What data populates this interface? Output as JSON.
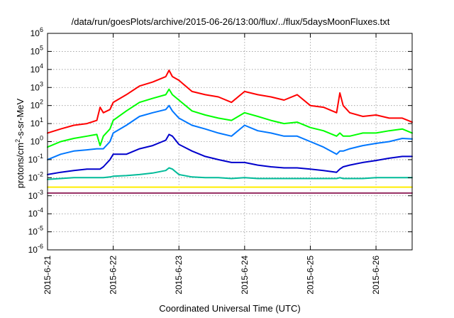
{
  "chart_data": {
    "type": "line",
    "title": "/data/run/goesPlots/archive/2015-06-26/13:00/flux/../flux/5daysMoonFluxes.txt",
    "xlabel": "Coordinated Universal Time (UTC)",
    "ylabel": "protons/cm²-s-sr-MeV",
    "ylabel_parts": {
      "pre": "protons/cm",
      "sup": "2",
      "post": "-s-sr-MeV"
    },
    "y_scale": "log",
    "ylim": [
      1e-06,
      1000000
    ],
    "xlim": [
      0,
      5.55
    ],
    "x_unit": "days since 2015-6-21 00:00 UTC",
    "grid": true,
    "legend": "none",
    "x_ticks": [
      {
        "value": 0,
        "label": "2015-6-21"
      },
      {
        "value": 1,
        "label": "2015-6-22"
      },
      {
        "value": 2,
        "label": "2015-6-23"
      },
      {
        "value": 3,
        "label": "2015-6-24"
      },
      {
        "value": 4,
        "label": "2015-6-25"
      },
      {
        "value": 5,
        "label": "2015-6-26"
      }
    ],
    "y_ticks": [
      {
        "value": 1e-06,
        "base": "10",
        "exp": "-6"
      },
      {
        "value": 1e-05,
        "base": "10",
        "exp": "-5"
      },
      {
        "value": 0.0001,
        "base": "10",
        "exp": "-4"
      },
      {
        "value": 0.001,
        "base": "10",
        "exp": "-3"
      },
      {
        "value": 0.01,
        "base": "10",
        "exp": "-2"
      },
      {
        "value": 0.1,
        "base": "10",
        "exp": "-1"
      },
      {
        "value": 1,
        "base": "10",
        "exp": "0"
      },
      {
        "value": 10,
        "base": "10",
        "exp": "1"
      },
      {
        "value": 100,
        "base": "10",
        "exp": "2"
      },
      {
        "value": 1000,
        "base": "10",
        "exp": "3"
      },
      {
        "value": 10000,
        "base": "10",
        "exp": "4"
      },
      {
        "value": 100000,
        "base": "10",
        "exp": "5"
      },
      {
        "value": 1000000,
        "base": "10",
        "exp": "6"
      }
    ],
    "series": [
      {
        "color": "#ff0000",
        "x": [
          0,
          0.2,
          0.4,
          0.6,
          0.75,
          0.8,
          0.85,
          0.95,
          1.0,
          1.2,
          1.4,
          1.6,
          1.8,
          1.85,
          1.9,
          2.0,
          2.2,
          2.4,
          2.6,
          2.8,
          3.0,
          3.2,
          3.4,
          3.6,
          3.8,
          4.0,
          4.2,
          4.4,
          4.45,
          4.5,
          4.6,
          4.8,
          5.0,
          5.2,
          5.4,
          5.55
        ],
        "y": [
          3,
          5,
          8,
          10,
          15,
          80,
          40,
          60,
          150,
          400,
          1200,
          2000,
          4000,
          9000,
          4000,
          2500,
          600,
          400,
          300,
          150,
          600,
          400,
          300,
          200,
          400,
          100,
          80,
          40,
          500,
          100,
          40,
          25,
          30,
          20,
          20,
          12
        ]
      },
      {
        "color": "#00ff00",
        "x": [
          0,
          0.2,
          0.4,
          0.6,
          0.75,
          0.8,
          0.85,
          0.95,
          1.0,
          1.2,
          1.4,
          1.6,
          1.8,
          1.85,
          1.9,
          2.0,
          2.2,
          2.4,
          2.6,
          2.8,
          3.0,
          3.2,
          3.4,
          3.6,
          3.8,
          4.0,
          4.2,
          4.4,
          4.45,
          4.5,
          4.6,
          4.8,
          5.0,
          5.2,
          5.4,
          5.55
        ],
        "y": [
          0.5,
          1,
          1.5,
          2,
          2.5,
          0.6,
          2,
          5,
          15,
          50,
          150,
          250,
          400,
          800,
          400,
          200,
          50,
          30,
          20,
          15,
          40,
          25,
          15,
          10,
          12,
          6,
          4,
          2,
          3,
          2,
          2,
          3,
          3,
          4,
          5,
          3
        ]
      },
      {
        "color": "#0077ff",
        "x": [
          0,
          0.2,
          0.4,
          0.6,
          0.75,
          0.8,
          0.85,
          0.95,
          1.0,
          1.2,
          1.4,
          1.6,
          1.8,
          1.85,
          1.9,
          2.0,
          2.2,
          2.4,
          2.6,
          2.8,
          3.0,
          3.2,
          3.4,
          3.6,
          3.8,
          4.0,
          4.2,
          4.4,
          4.45,
          4.5,
          4.6,
          4.8,
          5.0,
          5.2,
          5.4,
          5.55
        ],
        "y": [
          0.1,
          0.2,
          0.3,
          0.35,
          0.4,
          0.4,
          0.4,
          1,
          3,
          8,
          25,
          40,
          60,
          100,
          50,
          20,
          8,
          5,
          3,
          2,
          8,
          4,
          3,
          2,
          2,
          1,
          0.5,
          0.2,
          0.3,
          0.3,
          0.4,
          0.6,
          0.8,
          1,
          1.5,
          1.4
        ]
      },
      {
        "color": "#0000cc",
        "x": [
          0,
          0.2,
          0.4,
          0.6,
          0.75,
          0.8,
          0.85,
          0.95,
          1.0,
          1.2,
          1.4,
          1.6,
          1.8,
          1.85,
          1.9,
          2.0,
          2.2,
          2.4,
          2.6,
          2.8,
          3.0,
          3.2,
          3.4,
          3.6,
          3.8,
          4.0,
          4.2,
          4.4,
          4.45,
          4.5,
          4.6,
          4.8,
          5.0,
          5.2,
          5.4,
          5.55
        ],
        "y": [
          0.015,
          0.02,
          0.025,
          0.03,
          0.03,
          0.03,
          0.04,
          0.1,
          0.2,
          0.2,
          0.4,
          0.6,
          1.2,
          2.5,
          2,
          0.7,
          0.3,
          0.15,
          0.1,
          0.07,
          0.07,
          0.05,
          0.04,
          0.035,
          0.035,
          0.03,
          0.025,
          0.02,
          0.03,
          0.04,
          0.05,
          0.07,
          0.09,
          0.12,
          0.15,
          0.15
        ]
      },
      {
        "color": "#00bb99",
        "x": [
          0,
          0.2,
          0.4,
          0.6,
          0.75,
          0.8,
          0.85,
          0.95,
          1.0,
          1.2,
          1.4,
          1.6,
          1.8,
          1.85,
          1.9,
          2.0,
          2.2,
          2.4,
          2.6,
          2.8,
          3.0,
          3.2,
          3.4,
          3.6,
          3.8,
          4.0,
          4.2,
          4.4,
          4.45,
          4.5,
          4.6,
          4.8,
          5.0,
          5.2,
          5.4,
          5.55
        ],
        "y": [
          0.008,
          0.009,
          0.01,
          0.01,
          0.01,
          0.01,
          0.01,
          0.011,
          0.012,
          0.013,
          0.015,
          0.018,
          0.025,
          0.035,
          0.03,
          0.015,
          0.011,
          0.01,
          0.01,
          0.009,
          0.01,
          0.009,
          0.009,
          0.009,
          0.009,
          0.009,
          0.009,
          0.009,
          0.01,
          0.009,
          0.009,
          0.009,
          0.01,
          0.01,
          0.01,
          0.01
        ]
      },
      {
        "color": "#ffee00",
        "x": [
          0,
          0.5,
          1.0,
          1.5,
          2.0,
          2.5,
          3.0,
          3.5,
          4.0,
          4.5,
          5.0,
          5.55
        ],
        "y": [
          0.003,
          0.003,
          0.003,
          0.003,
          0.003,
          0.003,
          0.003,
          0.003,
          0.003,
          0.003,
          0.003,
          0.003
        ]
      },
      {
        "color": "#993366",
        "x": [
          0,
          0.5,
          1.0,
          1.5,
          2.0,
          2.5,
          3.0,
          3.5,
          4.0,
          4.5,
          5.0,
          5.55
        ],
        "y": [
          0.0014,
          0.0014,
          0.0014,
          0.0014,
          0.0014,
          0.0014,
          0.0014,
          0.0014,
          0.0014,
          0.0014,
          0.0014,
          0.0014
        ]
      }
    ]
  }
}
